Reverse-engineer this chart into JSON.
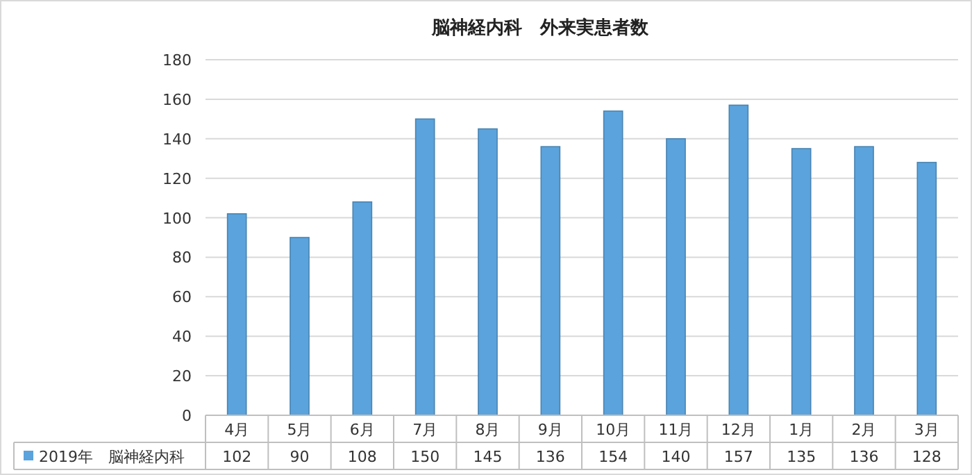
{
  "chart_data": {
    "type": "bar",
    "title": "脳神経内科　外来実患者数",
    "categories": [
      "4月",
      "5月",
      "6月",
      "7月",
      "8月",
      "9月",
      "10月",
      "11月",
      "12月",
      "1月",
      "2月",
      "3月"
    ],
    "series": [
      {
        "name": "2019年　脳神経内科",
        "color": "#5ba3dc",
        "values": [
          102,
          90,
          108,
          150,
          145,
          136,
          154,
          140,
          157,
          135,
          136,
          128
        ]
      }
    ],
    "ylim": [
      0,
      180
    ],
    "yticks": [
      0,
      20,
      40,
      60,
      80,
      100,
      120,
      140,
      160,
      180
    ],
    "grid": "y",
    "data_labels": true,
    "legend": "bottom left"
  }
}
